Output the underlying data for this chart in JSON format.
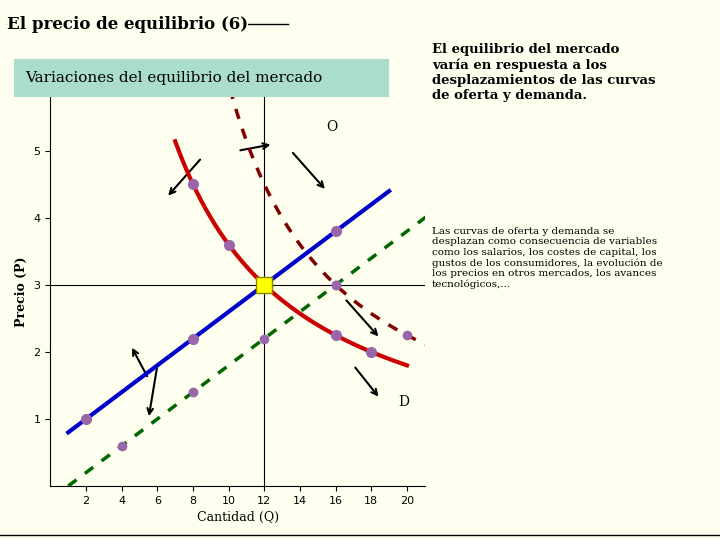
{
  "title": "El precio de equilibrio (6)",
  "subtitle": "Variaciones del equilibrio del mercado",
  "bg_color": "#FFFFF0",
  "subtitle_bg": "#AADDCC",
  "xlabel": "Cantidad (Q)",
  "ylabel": "Precio (P)",
  "xlim": [
    0,
    21
  ],
  "ylim": [
    0,
    5.8
  ],
  "xticks": [
    2,
    4,
    6,
    8,
    10,
    12,
    14,
    16,
    18,
    20
  ],
  "yticks": [
    1,
    2,
    3,
    4,
    5
  ],
  "equilibrium_x": 12,
  "equilibrium_y": 3,
  "supply_color": "#0000CC",
  "demand_color": "#CC0000",
  "supply_dotted_color": "#006600",
  "demand_dotted_color": "#800000",
  "eq_marker_color": "#FFFF00",
  "curve_marker_color": "#9966AA",
  "text_right_1": "El equilibrio del mercado\nvaría en respuesta a los\ndesplazamientos de las curvas\nde oferta y demanda.",
  "text_right_2": "Las curvas de oferta y demanda se\ndesplazan como consecuencia de variables\ncomo los salarios, los costes de capital, los\ngustos de los consumidores, la evolución de\nlos precios en otros mercados, los avances\ntecnológicos,...",
  "label_O": "O",
  "label_D": "D"
}
